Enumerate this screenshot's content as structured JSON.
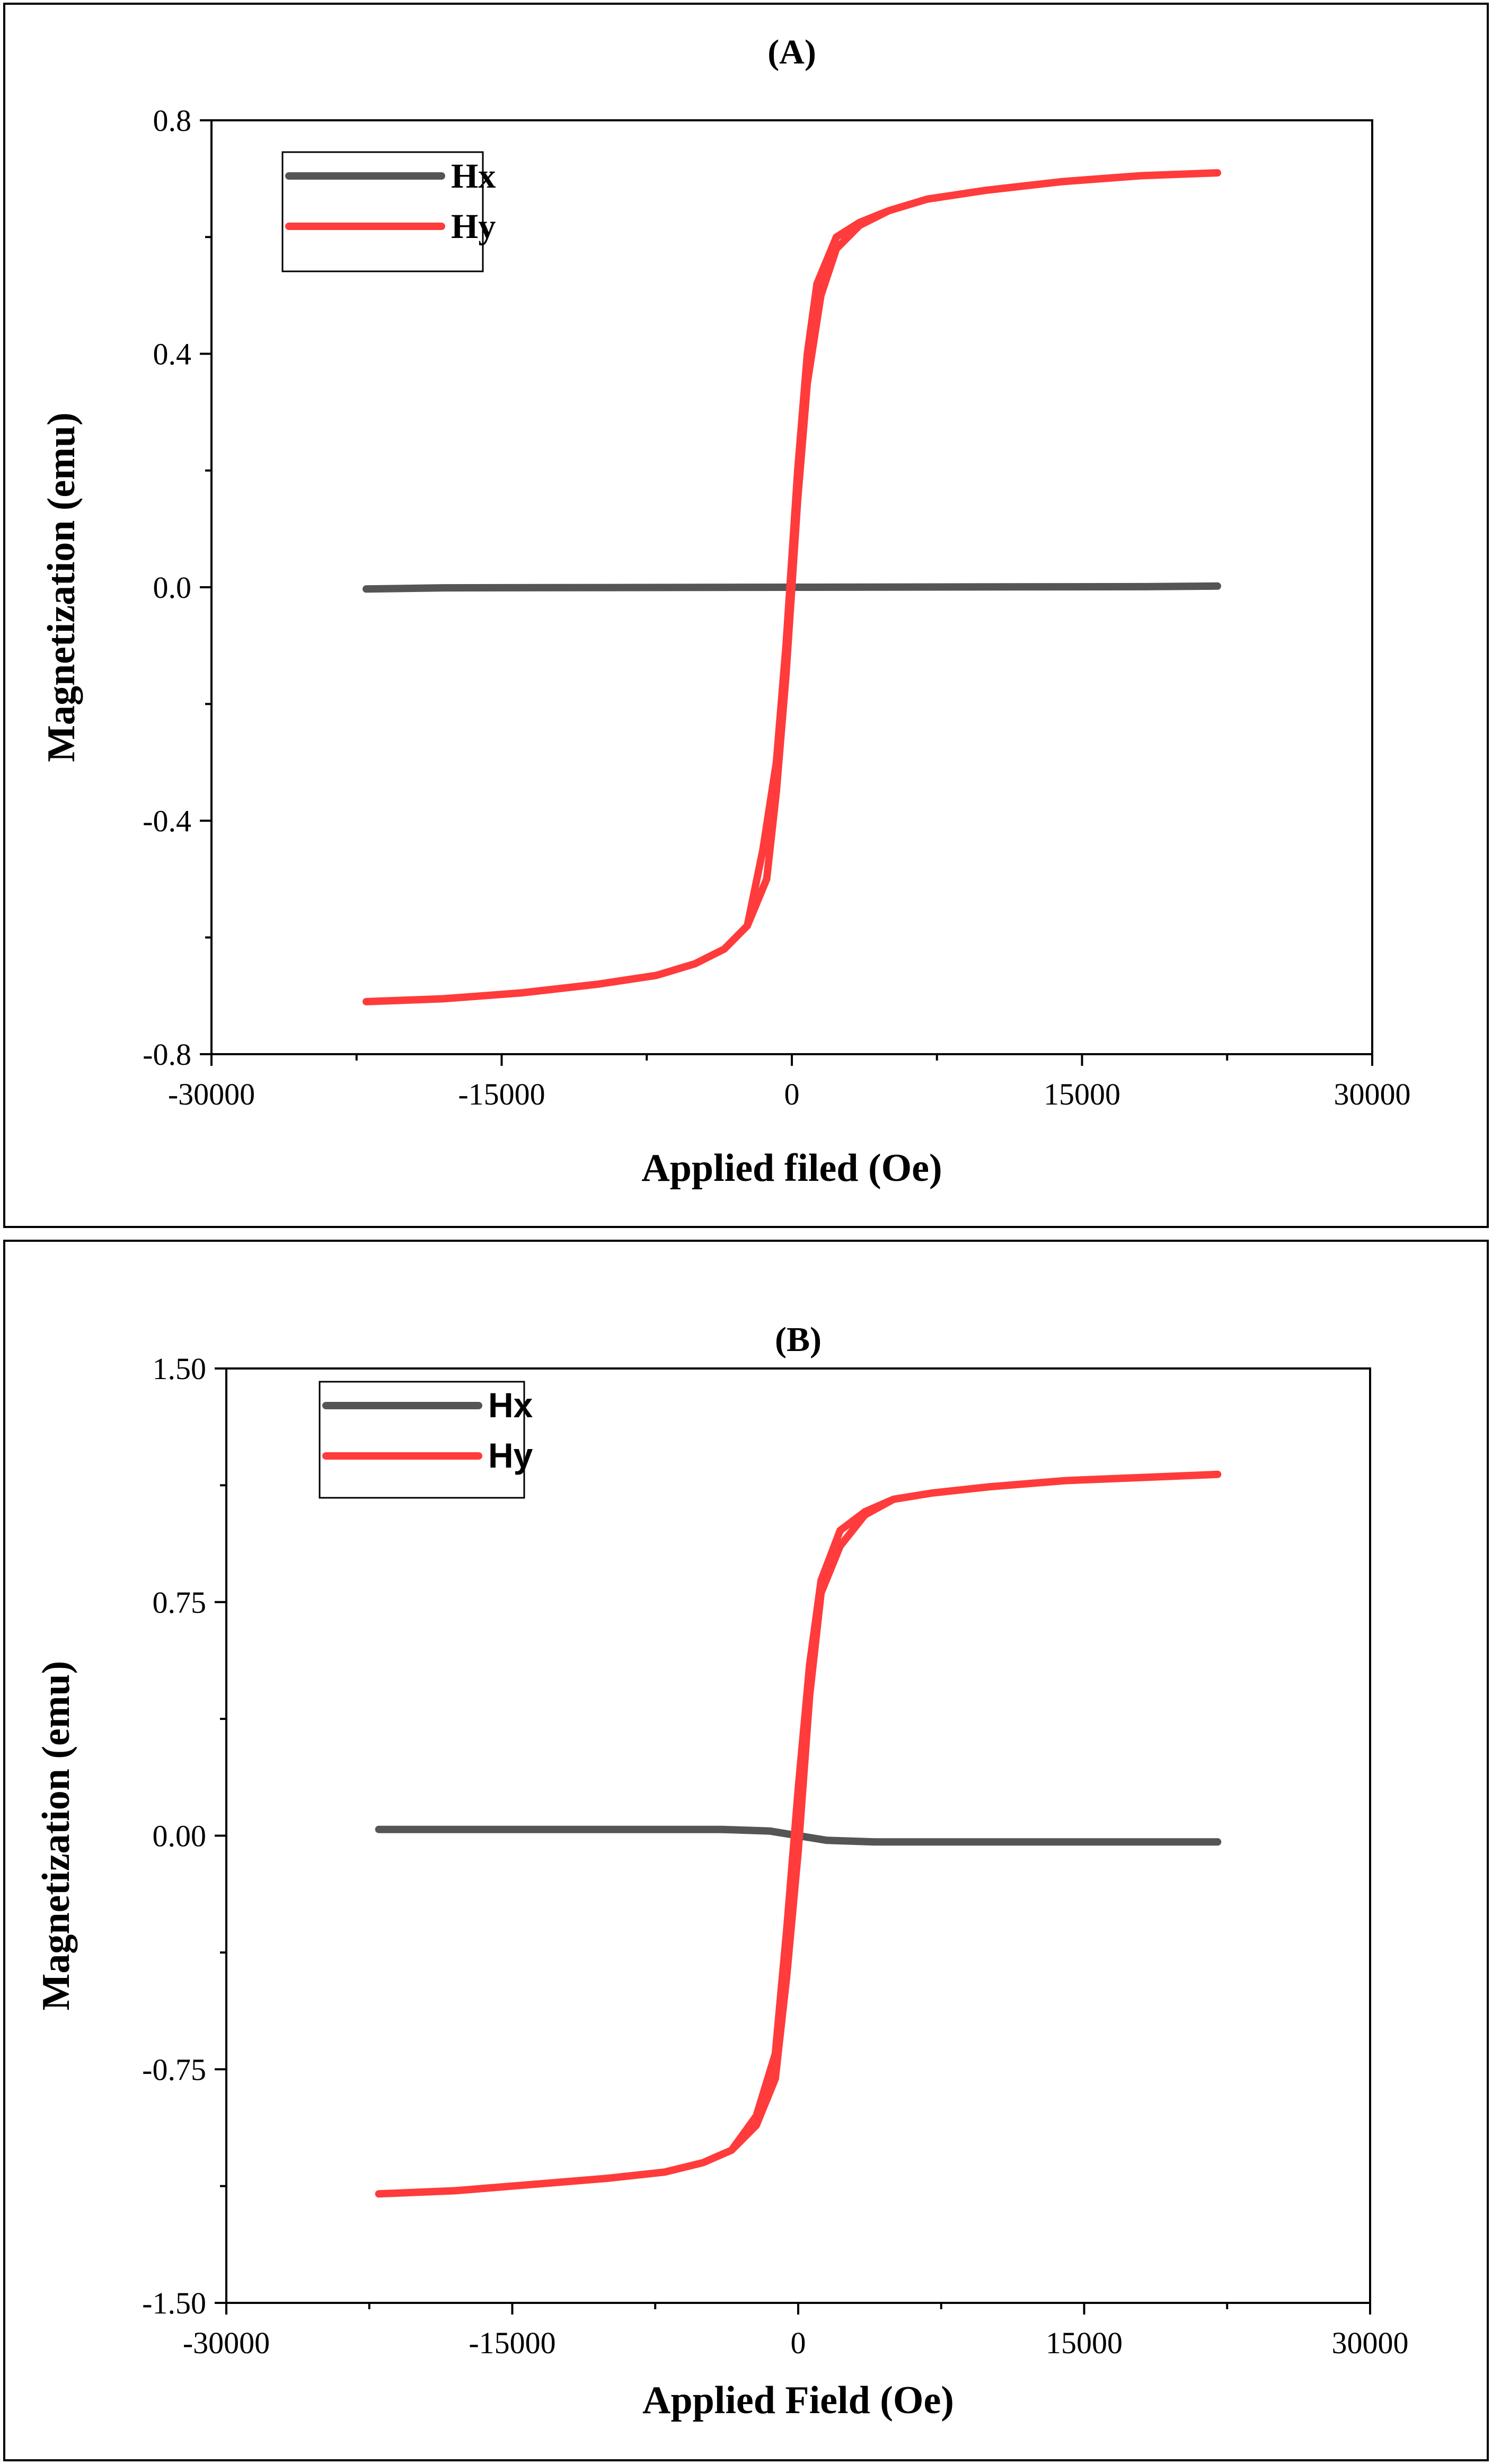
{
  "colors": {
    "hx": "#555555",
    "hy": "#ff3b3b",
    "axis": "#000000"
  },
  "chart_data": [
    {
      "type": "line",
      "title": "(A)",
      "xlabel": "Applied filed (Oe)",
      "ylabel": "Magnetization (emu)",
      "xlim": [
        -30000,
        30000
      ],
      "ylim": [
        -0.8,
        0.8
      ],
      "xticks": [
        -30000,
        -15000,
        0,
        15000,
        30000
      ],
      "xtick_labels": [
        "-30000",
        "-15000",
        "0",
        "15000",
        "30000"
      ],
      "yticks": [
        -0.8,
        -0.4,
        0.0,
        0.4,
        0.8
      ],
      "ytick_labels": [
        "-0.8",
        "-0.4",
        "0.0",
        "0.4",
        "0.8"
      ],
      "legend": {
        "position": "top-left",
        "entries": [
          "Hx",
          "Hy"
        ]
      },
      "series": [
        {
          "name": "Hx",
          "x": [
            -22000,
            -18000,
            0,
            18000,
            22000
          ],
          "y": [
            -0.003,
            -0.001,
            0.0,
            0.001,
            0.002
          ]
        },
        {
          "name": "Hy",
          "x": [
            -22000,
            -18000,
            -14000,
            -10000,
            -7000,
            -5000,
            -3500,
            -2300,
            -1300,
            -800,
            -300,
            0,
            300,
            800,
            1500,
            2300,
            3500,
            5000,
            7000,
            10000,
            14000,
            18000,
            22000,
            18000,
            14000,
            10000,
            7000,
            5000,
            3500,
            2300,
            1300,
            800,
            300,
            0,
            -300,
            -800,
            -1500,
            -2300,
            -3500,
            -5000,
            -7000,
            -10000,
            -14000,
            -18000,
            -22000
          ],
          "y": [
            -0.71,
            -0.705,
            -0.695,
            -0.68,
            -0.665,
            -0.645,
            -0.62,
            -0.58,
            -0.5,
            -0.35,
            -0.15,
            0.0,
            0.15,
            0.35,
            0.5,
            0.58,
            0.62,
            0.645,
            0.665,
            0.68,
            0.695,
            0.705,
            0.71,
            0.705,
            0.695,
            0.68,
            0.665,
            0.645,
            0.625,
            0.6,
            0.52,
            0.4,
            0.2,
            0.05,
            -0.1,
            -0.3,
            -0.45,
            -0.58,
            -0.62,
            -0.645,
            -0.665,
            -0.68,
            -0.695,
            -0.705,
            -0.71
          ]
        }
      ]
    },
    {
      "type": "line",
      "title": "(B)",
      "xlabel": "Applied Field (Oe)",
      "ylabel": "Magnetization (emu)",
      "xlim": [
        -30000,
        30000
      ],
      "ylim": [
        -1.5,
        1.5
      ],
      "xticks": [
        -30000,
        -15000,
        0,
        15000,
        30000
      ],
      "xtick_labels": [
        "-30000",
        "-15000",
        "0",
        "15000",
        "30000"
      ],
      "yticks": [
        -1.5,
        -0.75,
        0.0,
        0.75,
        1.5
      ],
      "ytick_labels": [
        "-1.50",
        "-0.75",
        "0.00",
        "0.75",
        "1.50"
      ],
      "legend": {
        "position": "top-left",
        "entries": [
          "Hx",
          "Hy"
        ]
      },
      "series": [
        {
          "name": "Hx",
          "x": [
            -22000,
            -15000,
            -8000,
            -4000,
            -1500,
            0,
            1500,
            4000,
            8000,
            15000,
            22000
          ],
          "y": [
            0.02,
            0.02,
            0.02,
            0.02,
            0.015,
            0.0,
            -0.015,
            -0.02,
            -0.02,
            -0.02,
            -0.02
          ]
        },
        {
          "name": "Hy",
          "x": [
            -22000,
            -18000,
            -14000,
            -10000,
            -7000,
            -5000,
            -3500,
            -2200,
            -1200,
            -600,
            0,
            600,
            1200,
            2200,
            3500,
            5000,
            7000,
            10000,
            14000,
            18000,
            22000,
            18000,
            14000,
            10000,
            7000,
            5000,
            3500,
            2200,
            1200,
            600,
            0,
            -600,
            -1200,
            -2200,
            -3500,
            -5000,
            -7000,
            -10000,
            -14000,
            -18000,
            -22000
          ],
          "y": [
            -1.15,
            -1.14,
            -1.12,
            -1.1,
            -1.08,
            -1.05,
            -1.01,
            -0.93,
            -0.78,
            -0.45,
            -0.05,
            0.45,
            0.78,
            0.93,
            1.03,
            1.08,
            1.1,
            1.12,
            1.14,
            1.15,
            1.16,
            1.15,
            1.14,
            1.12,
            1.1,
            1.08,
            1.04,
            0.98,
            0.82,
            0.55,
            0.15,
            -0.3,
            -0.7,
            -0.9,
            -1.01,
            -1.05,
            -1.08,
            -1.1,
            -1.12,
            -1.14,
            -1.15
          ]
        }
      ]
    }
  ]
}
